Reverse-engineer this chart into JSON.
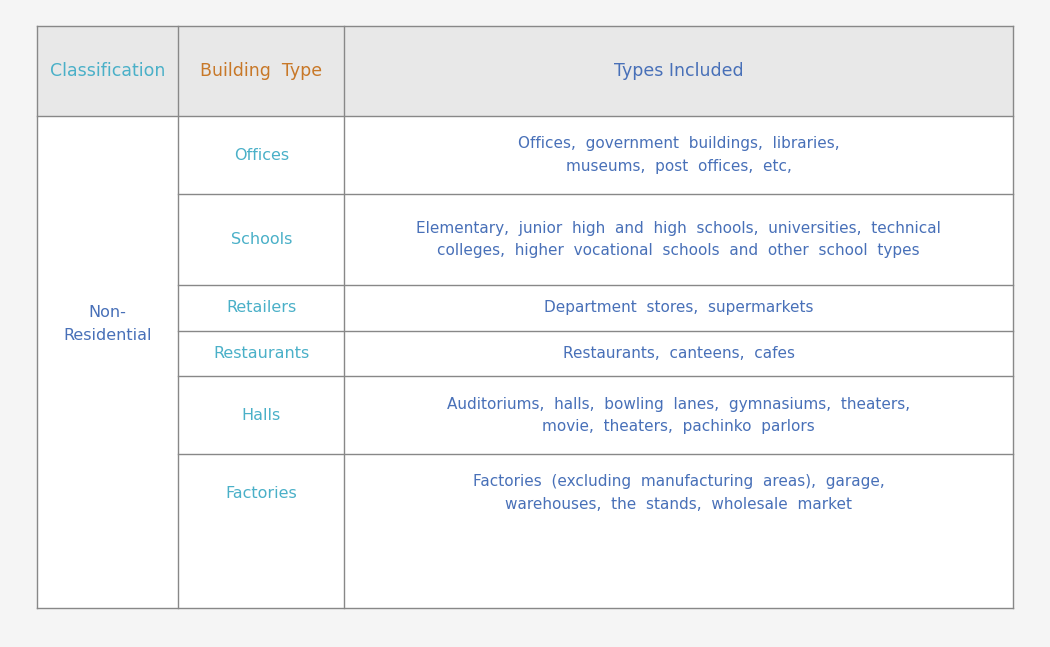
{
  "header": [
    "Classification",
    "Building  Type",
    "Types Included"
  ],
  "header_bg": "#e8e8e8",
  "header_text_color": "#4ab0c8",
  "building_type_header_color": "#c87828",
  "types_header_color": "#4870b8",
  "rows": [
    {
      "building_type": "Offices",
      "types_included": "Offices,  government  buildings,  libraries,\nmuseums,  post  offices,  etc,"
    },
    {
      "building_type": "Schools",
      "types_included": "Elementary,  junior  high  and  high  schools,  universities,  technical\ncolleges,  higher  vocational  schools  and  other  school  types"
    },
    {
      "building_type": "Retailers",
      "types_included": "Department  stores,  supermarkets"
    },
    {
      "building_type": "Restaurants",
      "types_included": "Restaurants,  canteens,  cafes"
    },
    {
      "building_type": "Halls",
      "types_included": "Auditoriums,  halls,  bowling  lanes,  gymnasiums,  theaters,\nmovie,  theaters,  pachinko  parlors"
    },
    {
      "building_type": "Factories",
      "types_included": "Factories  (excluding  manufacturing  areas),  garage,\nwarehouses,  the  stands,  wholesale  market"
    }
  ],
  "classification_text": "Non-\nResidential",
  "cell_text_color": "#4870b8",
  "bt_text_color": "#4ab0c8",
  "line_color": "#888888",
  "fig_bg": "#f5f5f5",
  "table_bg": "#ffffff",
  "fontsize_header": 12.5,
  "fontsize_cell": 11.5,
  "fontsize_types": 11.0
}
